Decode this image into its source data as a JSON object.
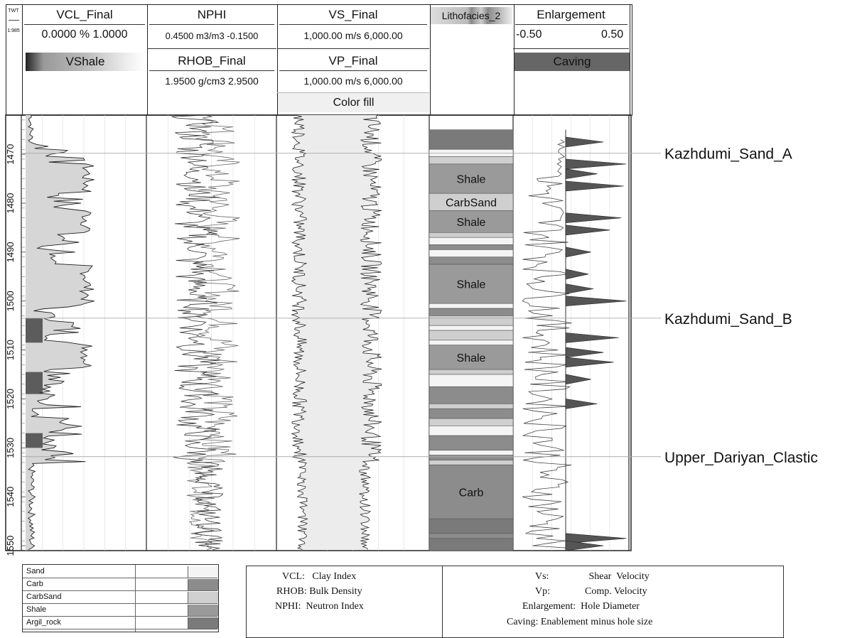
{
  "header": {
    "twt_label": "TWT",
    "twt_scale": "1:985",
    "tracks": [
      {
        "title": "VCL_Final",
        "scale": "0.0000 % 1.0000",
        "sub_title": "VShale"
      },
      {
        "title": "NPHI",
        "scale": "0.4500 m3/m3 -0.1500",
        "title2": "RHOB_Final",
        "scale2": "1.9500 g/cm3 2.9500"
      },
      {
        "title": "VS_Final",
        "scale": "1,000.00 m/s 6,000.00",
        "title2": "VP_Final",
        "scale2": "1,000.00 m/s 6,000.00",
        "fill": "Color fill"
      },
      {
        "title": "Lithofacies_2"
      },
      {
        "title": "Enlargement",
        "scale_min": "-0.50",
        "scale_max": "0.50",
        "sub_title": "Caving"
      }
    ]
  },
  "chart_data": {
    "type": "well-log",
    "depth_range": [
      1462,
      1551
    ],
    "depth_ticks": [
      "1470",
      "1480",
      "1490",
      "1500",
      "1510",
      "1520",
      "1530",
      "1540",
      "1550"
    ],
    "formation_tops": [
      {
        "name": "Kazhdumi_Sand_A",
        "depth": 1469.8
      },
      {
        "name": "Kazhdumi_Sand_B",
        "depth": 1503.5
      },
      {
        "name": "Upper_Dariyan_Clastic",
        "depth": 1531.8
      }
    ],
    "lithofacies": [
      {
        "top": 1465.0,
        "base": 1469.0,
        "facies": "Argil_rock",
        "label": ""
      },
      {
        "top": 1469.0,
        "base": 1470.5,
        "facies": "Sand",
        "label": ""
      },
      {
        "top": 1470.5,
        "base": 1472.0,
        "facies": "CarbSand",
        "label": ""
      },
      {
        "top": 1472.0,
        "base": 1478.0,
        "facies": "Shale",
        "label": "Shale"
      },
      {
        "top": 1478.0,
        "base": 1481.5,
        "facies": "CarbSand",
        "label": "CarbSand"
      },
      {
        "top": 1481.5,
        "base": 1486.0,
        "facies": "Shale",
        "label": "Shale"
      },
      {
        "top": 1486.0,
        "base": 1487.0,
        "facies": "CarbSand",
        "label": ""
      },
      {
        "top": 1487.0,
        "base": 1488.5,
        "facies": "Sand",
        "label": ""
      },
      {
        "top": 1488.5,
        "base": 1489.5,
        "facies": "Carb",
        "label": ""
      },
      {
        "top": 1489.5,
        "base": 1491.0,
        "facies": "Sand",
        "label": ""
      },
      {
        "top": 1491.0,
        "base": 1492.5,
        "facies": "Carb",
        "label": ""
      },
      {
        "top": 1492.5,
        "base": 1500.5,
        "facies": "Shale",
        "label": "Shale"
      },
      {
        "top": 1500.5,
        "base": 1501.5,
        "facies": "Sand",
        "label": ""
      },
      {
        "top": 1501.5,
        "base": 1503.0,
        "facies": "Carb",
        "label": ""
      },
      {
        "top": 1503.0,
        "base": 1505.0,
        "facies": "CarbSand",
        "label": ""
      },
      {
        "top": 1505.0,
        "base": 1506.0,
        "facies": "Sand",
        "label": ""
      },
      {
        "top": 1506.0,
        "base": 1508.0,
        "facies": "CarbSand",
        "label": ""
      },
      {
        "top": 1508.0,
        "base": 1509.0,
        "facies": "Sand",
        "label": ""
      },
      {
        "top": 1509.0,
        "base": 1514.0,
        "facies": "Shale",
        "label": "Shale"
      },
      {
        "top": 1514.0,
        "base": 1515.0,
        "facies": "CarbSand",
        "label": ""
      },
      {
        "top": 1515.0,
        "base": 1517.5,
        "facies": "Sand",
        "label": ""
      },
      {
        "top": 1517.5,
        "base": 1521.0,
        "facies": "Carb",
        "label": ""
      },
      {
        "top": 1521.0,
        "base": 1522.0,
        "facies": "CarbSand",
        "label": ""
      },
      {
        "top": 1522.0,
        "base": 1524.0,
        "facies": "Carb",
        "label": ""
      },
      {
        "top": 1524.0,
        "base": 1525.5,
        "facies": "CarbSand",
        "label": ""
      },
      {
        "top": 1525.5,
        "base": 1527.5,
        "facies": "Sand",
        "label": ""
      },
      {
        "top": 1527.5,
        "base": 1530.5,
        "facies": "Carb",
        "label": ""
      },
      {
        "top": 1530.5,
        "base": 1531.5,
        "facies": "Sand",
        "label": ""
      },
      {
        "top": 1531.5,
        "base": 1532.5,
        "facies": "Carb",
        "label": ""
      },
      {
        "top": 1532.5,
        "base": 1533.5,
        "facies": "CarbSand",
        "label": ""
      },
      {
        "top": 1533.5,
        "base": 1544.5,
        "facies": "Carb",
        "label": "Carb"
      },
      {
        "top": 1544.5,
        "base": 1547.5,
        "facies": "Argil_rock",
        "label": ""
      },
      {
        "top": 1547.5,
        "base": 1548.5,
        "facies": "Carb",
        "label": ""
      },
      {
        "top": 1548.5,
        "base": 1551.0,
        "facies": "Argil_rock",
        "label": ""
      }
    ],
    "facies_colors": {
      "Sand": "#f4f4f4",
      "Carb": "#8c8c8c",
      "CarbSand": "#cfcfcf",
      "Shale": "#9a9a9a",
      "Argil_rock": "#7a7a7a"
    },
    "caving_peaks": [
      {
        "depth": 1467.5,
        "value": 0.3
      },
      {
        "depth": 1472.0,
        "value": 0.48
      },
      {
        "depth": 1474.0,
        "value": 0.25
      },
      {
        "depth": 1476.5,
        "value": 0.46
      },
      {
        "depth": 1483.0,
        "value": 0.44
      },
      {
        "depth": 1485.5,
        "value": 0.35
      },
      {
        "depth": 1490.0,
        "value": 0.2
      },
      {
        "depth": 1494.5,
        "value": 0.18
      },
      {
        "depth": 1497.5,
        "value": 0.22
      },
      {
        "depth": 1500.0,
        "value": 0.48
      },
      {
        "depth": 1507.5,
        "value": 0.42
      },
      {
        "depth": 1510.5,
        "value": 0.3
      },
      {
        "depth": 1512.5,
        "value": 0.38
      },
      {
        "depth": 1516.0,
        "value": 0.2
      },
      {
        "depth": 1521.0,
        "value": 0.25
      },
      {
        "depth": 1548.5,
        "value": 0.48
      },
      {
        "depth": 1550.0,
        "value": 0.3
      }
    ]
  },
  "facies_legend": [
    {
      "name": "Sand",
      "color": "#f4f4f4"
    },
    {
      "name": "Carb",
      "color": "#8c8c8c"
    },
    {
      "name": "CarbSand",
      "color": "#cfcfcf"
    },
    {
      "name": "Shale",
      "color": "#9a9a9a"
    },
    {
      "name": "Argil_rock",
      "color": "#7a7a7a"
    }
  ],
  "notes1": [
    "VCL:   Clay Index",
    "RHOB: Bulk Density",
    "NPHI:  Neutron Index"
  ],
  "notes2": [
    "Vs:                Shear  Velocity",
    "Vp:              Comp. Velocity",
    "Enlargement:  Hole Diameter",
    "Caving: Enablement minus hole size"
  ]
}
